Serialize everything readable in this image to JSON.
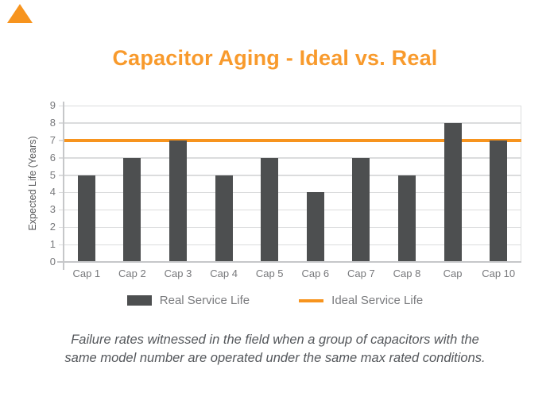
{
  "page": {
    "background": "#FFFFFF"
  },
  "logo": {
    "name": "corner-triangle",
    "color": "#F7941E"
  },
  "header": {
    "title": "Capacitor Aging - Ideal vs. Real",
    "color": "#F89A2C"
  },
  "chart_data": {
    "type": "bar",
    "title": "Capacitor Aging - Ideal vs. Real",
    "categories": [
      "Cap 1",
      "Cap 2",
      "Cap 3",
      "Cap 4",
      "Cap 5",
      "Cap 6",
      "Cap 7",
      "Cap 8",
      "Cap",
      "Cap 10"
    ],
    "series": [
      {
        "name": "Real Service Life",
        "type": "bar",
        "color": "#4D4F50",
        "values": [
          5,
          6,
          7,
          5,
          6,
          4,
          6,
          5,
          8,
          7
        ]
      },
      {
        "name": "Ideal Service Life",
        "type": "line",
        "color": "#F7941E",
        "values": [
          7,
          7,
          7,
          7,
          7,
          7,
          7,
          7,
          7,
          7
        ]
      }
    ],
    "xlabel": "",
    "ylabel": "Expected Life (Years)",
    "ylim": [
      0,
      9
    ],
    "yticks": [
      0,
      1,
      2,
      3,
      4,
      5,
      6,
      7,
      8,
      9
    ],
    "grid": true,
    "grid_color": "#DBDCDD",
    "axis_line_color": "#C6C7C9",
    "axis_text_color": "#77787B",
    "legend_position": "bottom"
  },
  "legend": {
    "items": [
      {
        "label": "Real Service Life",
        "swatch": "bar",
        "color": "#4D4F50"
      },
      {
        "label": "Ideal Service Life",
        "swatch": "line",
        "color": "#F7941E"
      }
    ]
  },
  "caption": {
    "line1": "Failure rates witnessed in the field when a group of capacitors with the",
    "line2": "same model number are operated under the same max rated conditions.",
    "color": "#54575B"
  }
}
